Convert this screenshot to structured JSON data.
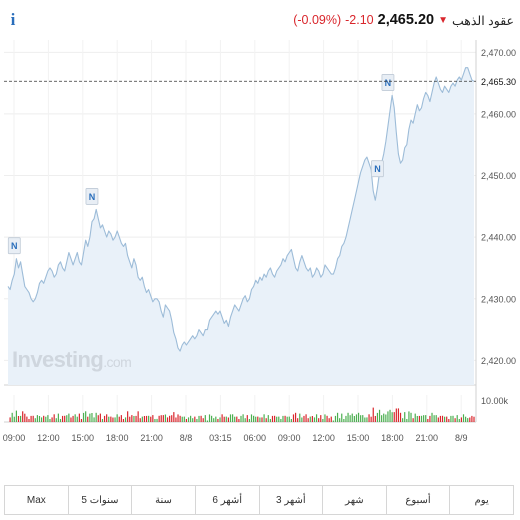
{
  "quote": {
    "title": "عقود الذهب",
    "price": "2,465.20",
    "change": "-2.10",
    "change_pct": "(-0.09%)",
    "down_color": "#d9262c",
    "arrow_icon": "down-arrow-icon"
  },
  "info_icon": {
    "glyph": "i",
    "color": "#2a6ebb"
  },
  "watermark": {
    "brand": "Investing",
    "suffix": ".com"
  },
  "ranges": [
    "Max",
    "5 سنوات",
    "سنة",
    "6 أشهر",
    "3 أشهر",
    "شهر",
    "أسبوع",
    "يوم"
  ],
  "chart_data": {
    "type": "area",
    "line_color": "#9dbcd8",
    "fill_color": "#e9f1f9",
    "x_labels": [
      "09:00",
      "12:00",
      "15:00",
      "18:00",
      "21:00",
      "8/8",
      "03:15",
      "06:00",
      "09:00",
      "12:00",
      "15:00",
      "18:00",
      "21:00",
      "8/9"
    ],
    "y_ticks": [
      "2,420.00",
      "2,430.00",
      "2,440.00",
      "2,450.00",
      "2,460.00",
      "2,470.00"
    ],
    "ylim": [
      2416,
      2472
    ],
    "grid": true,
    "current_price": 2465.3,
    "current_label": "2,465.30",
    "volume_label": "10.00k",
    "volume_up_color": "#4caf50",
    "volume_down_color": "#d9262c",
    "news_label": "N",
    "news_markers": [
      {
        "index": 3,
        "value": 2436.5
      },
      {
        "index": 40,
        "value": 2444.5
      },
      {
        "index": 176,
        "value": 2449.0
      },
      {
        "index": 181,
        "value": 2463.0
      }
    ],
    "prices": [
      2432.0,
      2431.5,
      2433.0,
      2434.0,
      2436.5,
      2435.0,
      2436.0,
      2434.0,
      2432.0,
      2431.5,
      2431.0,
      2430.0,
      2429.5,
      2430.0,
      2431.0,
      2432.5,
      2433.0,
      2432.5,
      2433.5,
      2434.5,
      2435.0,
      2434.5,
      2433.5,
      2434.0,
      2435.5,
      2436.0,
      2435.0,
      2434.5,
      2436.0,
      2437.5,
      2436.5,
      2435.5,
      2436.5,
      2437.5,
      2436.0,
      2435.5,
      2437.5,
      2439.5,
      2438.5,
      2440.0,
      2442.5,
      2443.0,
      2444.5,
      2443.0,
      2441.5,
      2442.0,
      2441.0,
      2440.0,
      2441.0,
      2440.5,
      2439.5,
      2440.0,
      2441.0,
      2440.0,
      2439.0,
      2438.5,
      2439.0,
      2437.0,
      2436.0,
      2435.0,
      2436.5,
      2435.5,
      2433.5,
      2433.0,
      2433.5,
      2432.0,
      2431.0,
      2431.5,
      2430.5,
      2429.5,
      2430.0,
      2430.0,
      2429.5,
      2428.0,
      2427.0,
      2429.0,
      2428.5,
      2428.0,
      2426.5,
      2424.5,
      2423.5,
      2422.0,
      2421.5,
      2422.5,
      2423.0,
      2422.5,
      2423.0,
      2423.5,
      2424.0,
      2423.5,
      2424.0,
      2425.0,
      2424.5,
      2424.0,
      2425.0,
      2425.0,
      2426.5,
      2427.0,
      2427.5,
      2428.0,
      2427.5,
      2428.0,
      2427.0,
      2426.0,
      2426.5,
      2425.5,
      2427.0,
      2428.0,
      2429.0,
      2428.5,
      2428.0,
      2429.0,
      2430.0,
      2430.5,
      2429.5,
      2430.0,
      2431.5,
      2432.0,
      2433.0,
      2432.5,
      2433.5,
      2433.0,
      2434.0,
      2433.5,
      2434.5,
      2435.0,
      2434.0,
      2433.5,
      2434.5,
      2435.0,
      2435.5,
      2436.5,
      2436.0,
      2437.0,
      2437.5,
      2438.0,
      2436.5,
      2435.0,
      2434.5,
      2436.0,
      2437.0,
      2436.0,
      2435.0,
      2434.5,
      2435.0,
      2433.5,
      2434.0,
      2435.0,
      2434.5,
      2433.5,
      2434.0,
      2435.5,
      2435.0,
      2434.5,
      2434.0,
      2434.0,
      2435.0,
      2436.5,
      2437.0,
      2438.5,
      2439.0,
      2440.0,
      2441.5,
      2443.0,
      2444.5,
      2446.0,
      2447.5,
      2449.0,
      2450.5,
      2451.5,
      2452.5,
      2453.0,
      2452.0,
      2451.0,
      2447.5,
      2446.0,
      2448.0,
      2450.5,
      2452.0,
      2453.5,
      2455.5,
      2458.0,
      2460.5,
      2463.0,
      2461.0,
      2457.0,
      2453.5,
      2452.0,
      2452.5,
      2454.5,
      2455.0,
      2457.5,
      2459.0,
      2458.5,
      2460.0,
      2461.5,
      2460.5,
      2461.0,
      2462.5,
      2463.5,
      2463.0,
      2462.0,
      2463.5,
      2465.0,
      2466.0,
      2465.0,
      2464.0,
      2463.5,
      2464.5,
      2464.0,
      2463.5,
      2464.5,
      2465.0,
      2464.5,
      2465.5,
      2466.0,
      2465.5,
      2466.5,
      2467.5,
      2467.5,
      2466.5,
      2465.5,
      2465.3
    ]
  }
}
